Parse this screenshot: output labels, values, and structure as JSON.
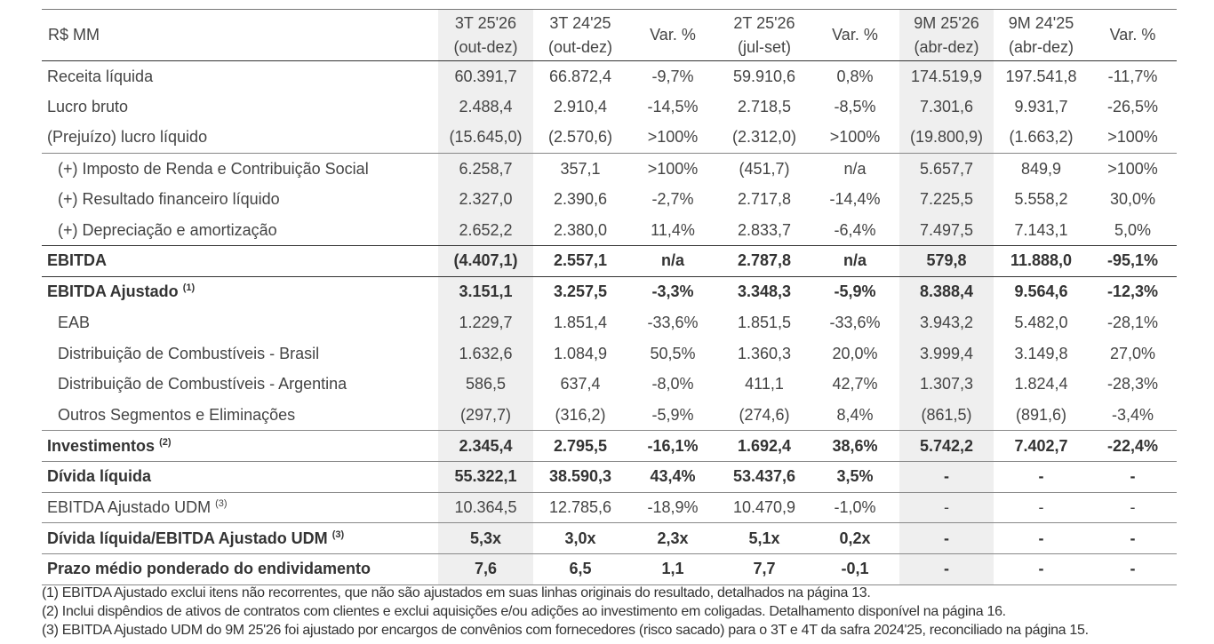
{
  "table": {
    "label_header": "R$ MM",
    "columns": [
      {
        "title": "3T 25'26",
        "period": "(out-dez)"
      },
      {
        "title": "3T 24'25",
        "period": "(out-dez)"
      },
      {
        "title": "Var. %"
      },
      {
        "title": "2T 25'26",
        "period": "(jul-set)"
      },
      {
        "title": "Var. %"
      },
      {
        "title": "9M 25'26",
        "period": "(abr-dez)"
      },
      {
        "title": "9M 24'25",
        "period": "(abr-dez)"
      },
      {
        "title": "Var. %"
      }
    ],
    "rows": [
      {
        "label": "Receita líquida",
        "cells": [
          "60.391,7",
          "66.872,4",
          "-9,7%",
          "59.910,6",
          "0,8%",
          "174.519,9",
          "197.541,8",
          "-11,7%"
        ]
      },
      {
        "label": "Lucro bruto",
        "cells": [
          "2.488,4",
          "2.910,4",
          "-14,5%",
          "2.718,5",
          "-8,5%",
          "7.301,6",
          "9.931,7",
          "-26,5%"
        ]
      },
      {
        "label": "(Prejuízo) lucro líquido",
        "cells": [
          "(15.645,0)",
          "(2.570,6)",
          ">100%",
          "(2.312,0)",
          ">100%",
          "(19.800,9)",
          "(1.663,2)",
          ">100%"
        ]
      },
      {
        "label": "(+) Imposto de Renda e Contribuição Social",
        "indent": true,
        "cells": [
          "6.258,7",
          "357,1",
          ">100%",
          "(451,7)",
          "n/a",
          "5.657,7",
          "849,9",
          ">100%"
        ]
      },
      {
        "label": "(+) Resultado financeiro líquido",
        "indent": true,
        "cells": [
          "2.327,0",
          "2.390,6",
          "-2,7%",
          "2.717,8",
          "-14,4%",
          "7.225,5",
          "5.558,2",
          "30,0%"
        ]
      },
      {
        "label": "(+) Depreciação e amortização",
        "indent": true,
        "cells": [
          "2.652,2",
          "2.380,0",
          "11,4%",
          "2.833,7",
          "-6,4%",
          "7.497,5",
          "7.143,1",
          "5,0%"
        ]
      },
      {
        "label": "EBITDA",
        "bold": true,
        "cells": [
          "(4.407,1)",
          "2.557,1",
          "n/a",
          "2.787,8",
          "n/a",
          "579,8",
          "11.888,0",
          "-95,1%"
        ]
      },
      {
        "label": "EBITDA Ajustado",
        "note": "(1)",
        "bold": true,
        "cells": [
          "3.151,1",
          "3.257,5",
          "-3,3%",
          "3.348,3",
          "-5,9%",
          "8.388,4",
          "9.564,6",
          "-12,3%"
        ]
      },
      {
        "label": "EAB",
        "indent": true,
        "cells": [
          "1.229,7",
          "1.851,4",
          "-33,6%",
          "1.851,5",
          "-33,6%",
          "3.943,2",
          "5.482,0",
          "-28,1%"
        ]
      },
      {
        "label": "Distribuição de Combustíveis - Brasil",
        "indent": true,
        "cells": [
          "1.632,6",
          "1.084,9",
          "50,5%",
          "1.360,3",
          "20,0%",
          "3.999,4",
          "3.149,8",
          "27,0%"
        ]
      },
      {
        "label": "Distribuição de Combustíveis - Argentina",
        "indent": true,
        "cells": [
          "586,5",
          "637,4",
          "-8,0%",
          "411,1",
          "42,7%",
          "1.307,3",
          "1.824,4",
          "-28,3%"
        ]
      },
      {
        "label": "Outros Segmentos e Eliminações",
        "indent": true,
        "cells": [
          "(297,7)",
          "(316,2)",
          "-5,9%",
          "(274,6)",
          "8,4%",
          "(861,5)",
          "(891,6)",
          "-3,4%"
        ]
      },
      {
        "label": "Investimentos",
        "note": "(2)",
        "bold": true,
        "cells": [
          "2.345,4",
          "2.795,5",
          "-16,1%",
          "1.692,4",
          "38,6%",
          "5.742,2",
          "7.402,7",
          "-22,4%"
        ]
      },
      {
        "label": "Dívida líquida",
        "bold": true,
        "cells": [
          "55.322,1",
          "38.590,3",
          "43,4%",
          "53.437,6",
          "3,5%",
          "-",
          "-",
          "-"
        ]
      },
      {
        "label": "EBITDA Ajustado UDM",
        "note": "(3)",
        "cells": [
          "10.364,5",
          "12.785,6",
          "-18,9%",
          "10.470,9",
          "-1,0%",
          "-",
          "-",
          "-"
        ]
      },
      {
        "label": "Dívida líquida/EBITDA Ajustado UDM",
        "note": "(3)",
        "bold": true,
        "cells": [
          "5,3x",
          "3,0x",
          "2,3x",
          "5,1x",
          "0,2x",
          "-",
          "-",
          "-"
        ]
      },
      {
        "label": "Prazo médio ponderado do endividamento",
        "bold": true,
        "cells": [
          "7,6",
          "6,5",
          "1,1",
          "7,7",
          "-0,1",
          "-",
          "-",
          "-"
        ]
      }
    ]
  },
  "footnotes": [
    "(1) EBITDA Ajustado exclui itens não recorrentes, que não são ajustados em suas linhas originais do resultado, detalhados na página 13.",
    "(2) Inclui dispêndios de ativos de contratos com clientes e exclui aquisições e/ou adições ao investimento em coligadas. Detalhamento disponível na página 16.",
    "(3) EBITDA Ajustado UDM do 9M 25'26 foi ajustado por encargos de convênios com fornecedores (risco sacado) para o 3T e 4T da safra 2024'25, reconciliado na página 15."
  ]
}
